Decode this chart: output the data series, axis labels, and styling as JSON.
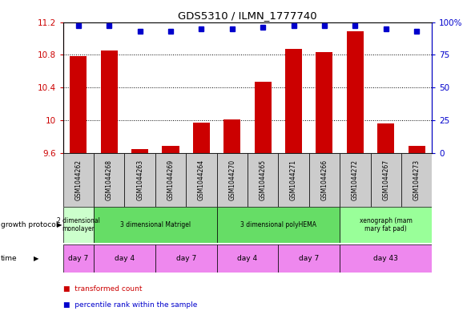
{
  "title": "GDS5310 / ILMN_1777740",
  "samples": [
    "GSM1044262",
    "GSM1044268",
    "GSM1044263",
    "GSM1044269",
    "GSM1044264",
    "GSM1044270",
    "GSM1044265",
    "GSM1044271",
    "GSM1044266",
    "GSM1044272",
    "GSM1044267",
    "GSM1044273"
  ],
  "bar_values": [
    10.78,
    10.85,
    9.65,
    9.68,
    9.97,
    10.01,
    10.47,
    10.87,
    10.83,
    11.09,
    9.96,
    9.68
  ],
  "dot_values": [
    97,
    97,
    93,
    93,
    95,
    95,
    96,
    97,
    97,
    97,
    95,
    93
  ],
  "ylim_left": [
    9.6,
    11.2
  ],
  "ylim_right": [
    0,
    100
  ],
  "yticks_left": [
    9.6,
    10.0,
    10.4,
    10.8,
    11.2
  ],
  "ytick_labels_left": [
    "9.6",
    "10",
    "10.4",
    "10.8",
    "11.2"
  ],
  "yticks_right": [
    0,
    25,
    50,
    75,
    100
  ],
  "ytick_labels_right": [
    "0",
    "25",
    "50",
    "75",
    "100%"
  ],
  "bar_color": "#cc0000",
  "dot_color": "#0000cc",
  "growth_protocol_groups": [
    {
      "label": "2 dimensional\nmonolayer",
      "start": 0,
      "end": 1,
      "color": "#ccffcc"
    },
    {
      "label": "3 dimensional Matrigel",
      "start": 1,
      "end": 5,
      "color": "#66dd66"
    },
    {
      "label": "3 dimensional polyHEMA",
      "start": 5,
      "end": 9,
      "color": "#66dd66"
    },
    {
      "label": "xenograph (mam\nmary fat pad)",
      "start": 9,
      "end": 12,
      "color": "#99ff99"
    }
  ],
  "time_groups": [
    {
      "label": "day 7",
      "start": 0,
      "end": 1,
      "color": "#ee88ee"
    },
    {
      "label": "day 4",
      "start": 1,
      "end": 3,
      "color": "#ee88ee"
    },
    {
      "label": "day 7",
      "start": 3,
      "end": 5,
      "color": "#ee88ee"
    },
    {
      "label": "day 4",
      "start": 5,
      "end": 7,
      "color": "#ee88ee"
    },
    {
      "label": "day 7",
      "start": 7,
      "end": 9,
      "color": "#ee88ee"
    },
    {
      "label": "day 43",
      "start": 9,
      "end": 12,
      "color": "#ee88ee"
    }
  ],
  "legend_items": [
    {
      "label": "transformed count",
      "color": "#cc0000"
    },
    {
      "label": "percentile rank within the sample",
      "color": "#0000cc"
    }
  ],
  "bar_width": 0.55,
  "background_color": "#ffffff",
  "grid_color": "#000000",
  "sample_box_color": "#cccccc",
  "figsize": [
    5.83,
    3.93
  ],
  "dpi": 100
}
